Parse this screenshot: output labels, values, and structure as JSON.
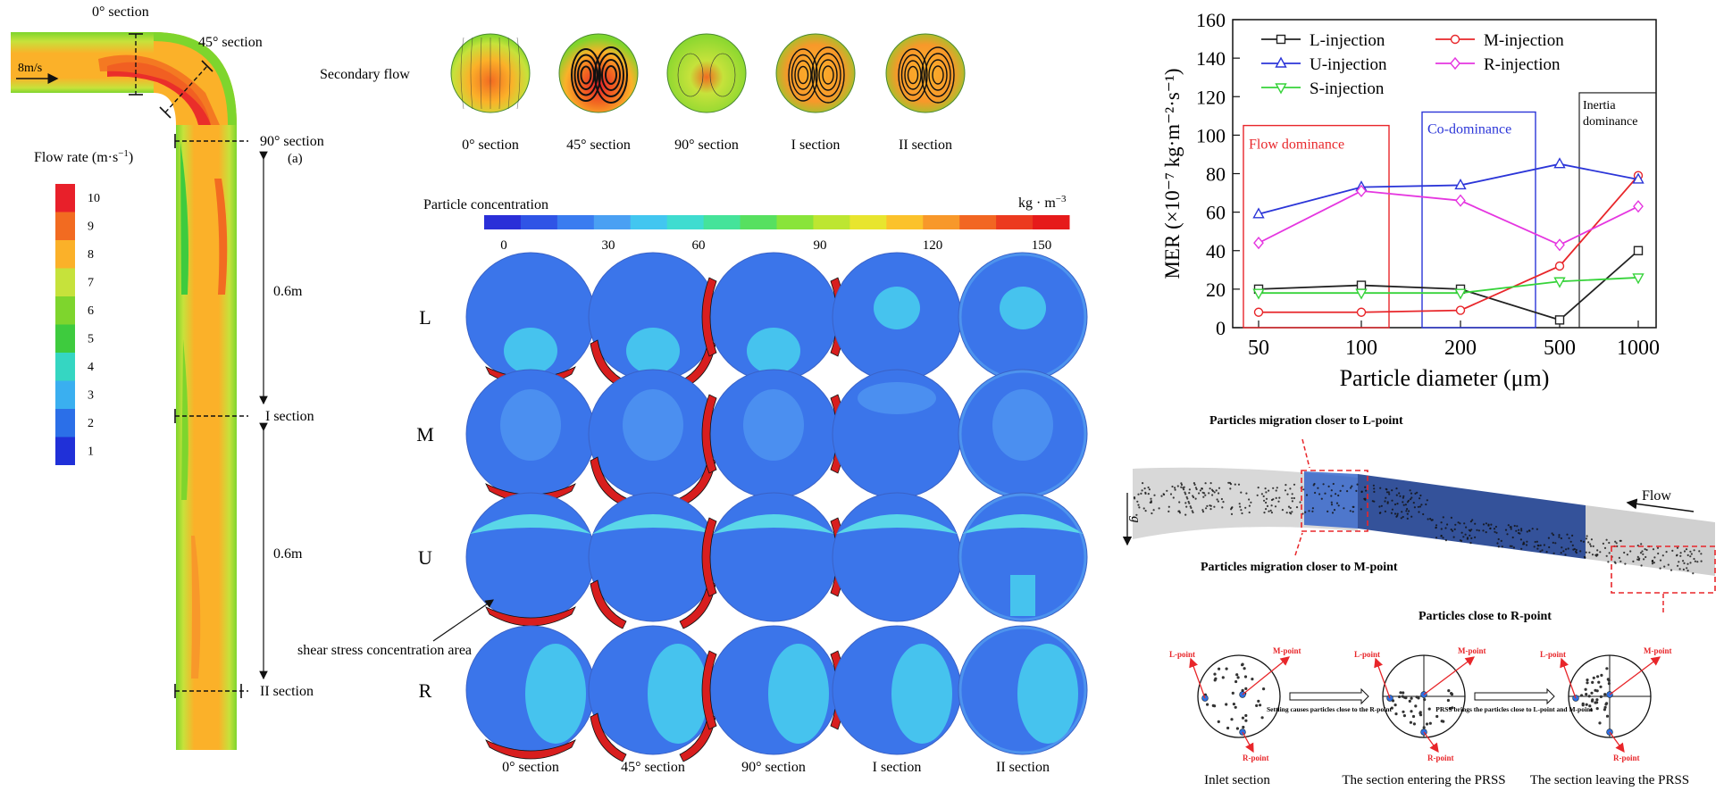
{
  "panel_a": {
    "inlet_velocity": "8m/s",
    "sections": {
      "s0": "0° section",
      "s45": "45° section",
      "s90": "90° section",
      "s90_sub": "(a)",
      "sI": "I section",
      "sII": "II section"
    },
    "lengths": [
      "0.6m",
      "0.6m"
    ],
    "legend_title": "Flow rate (m·s",
    "legend_title_sup": "−1",
    "legend_title_close": ")",
    "legend_levels": [
      "10",
      "9",
      "8",
      "7",
      "6",
      "5",
      "4",
      "3",
      "2",
      "1"
    ],
    "legend_colors": [
      "#e8202a",
      "#f26b21",
      "#fbb129",
      "#c6e23b",
      "#7ed52d",
      "#3ecb3e",
      "#35d6c2",
      "#3aaff0",
      "#2b6fe8",
      "#2030d8"
    ]
  },
  "secondary_flow": {
    "label": "Secondary flow",
    "captions": [
      "0° section",
      "45° section",
      "90° section",
      "I section",
      "II section"
    ]
  },
  "particle_concentration": {
    "title": "Particle concentration",
    "unit": "kg · m",
    "unit_sup": "−3",
    "ticks": [
      "0",
      "30",
      "60",
      "90",
      "120",
      "150"
    ],
    "colorbar": [
      "#2a2fd8",
      "#2f54e6",
      "#3a7cf0",
      "#4aa0f3",
      "#42c6f0",
      "#3fdcd0",
      "#45e39a",
      "#57e060",
      "#89e43a",
      "#bde631",
      "#e8e52e",
      "#fbc22b",
      "#f8982a",
      "#f26622",
      "#ec3a1f",
      "#e61a1a"
    ],
    "rows": [
      "L",
      "M",
      "U",
      "R"
    ],
    "captions": [
      "0° section",
      "45° section",
      "90° section",
      "I section",
      "II section"
    ],
    "annotation": "shear stress concentration area"
  },
  "chart_data": {
    "type": "line",
    "categories": [
      "50",
      "100",
      "200",
      "500",
      "1000"
    ],
    "xlabel": "Particle diameter (μm)",
    "ylabel": "MER (×10⁻⁷ kg·m⁻²·s⁻¹)",
    "ylim": [
      0,
      160
    ],
    "yticks": [
      "0",
      "20",
      "40",
      "60",
      "80",
      "100",
      "120",
      "140",
      "160"
    ],
    "series": [
      {
        "name": "L-injection",
        "color": "#222222",
        "marker": "square",
        "values": [
          20,
          22,
          20,
          4,
          40
        ]
      },
      {
        "name": "M-injection",
        "color": "#e8262a",
        "marker": "circle",
        "values": [
          8,
          8,
          9,
          32,
          79
        ]
      },
      {
        "name": "U-injection",
        "color": "#2b35d8",
        "marker": "triangle-up",
        "values": [
          59,
          73,
          74,
          85,
          77
        ]
      },
      {
        "name": "R-injection",
        "color": "#e536e0",
        "marker": "diamond",
        "values": [
          44,
          71,
          66,
          43,
          63
        ]
      },
      {
        "name": "S-injection",
        "color": "#36d33a",
        "marker": "triangle-down",
        "values": [
          18,
          18,
          18,
          24,
          26
        ]
      }
    ],
    "regions": [
      {
        "label": "Flow dominance",
        "color": "#e8262a"
      },
      {
        "label": "Co-dominance",
        "color": "#2b35d8"
      },
      {
        "label": "Inertia",
        "label2": "dominance",
        "color": "#222222"
      }
    ]
  },
  "migration": {
    "l_point_title": "Particles migration closer to L-point",
    "m_point_title": "Particles migration closer to M-point",
    "r_point_title": "Particles close to R-point",
    "flow_label": "Flow",
    "gravity_label": "g"
  },
  "schematic": {
    "points": {
      "l": "L-point",
      "m": "M-point",
      "r": "R-point"
    },
    "arrow1": "Settling causes particles close to the R-point",
    "arrow2": "PRSS brings the particles close to L-point and M-point",
    "captions": [
      "Inlet section",
      "The section entering the PRSS",
      "The section leaving the PRSS"
    ]
  }
}
